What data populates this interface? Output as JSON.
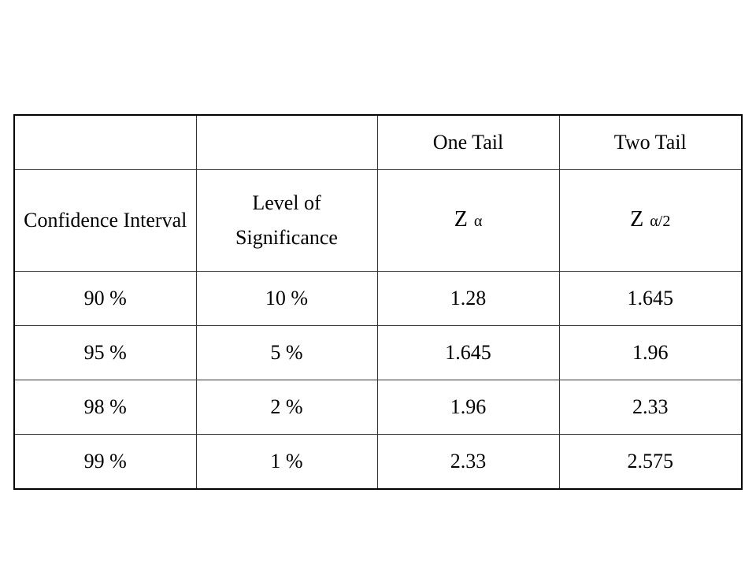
{
  "table": {
    "top_header": [
      "One Tail",
      "Two Tail"
    ],
    "header": [
      {
        "text": "Confidence Interval"
      },
      {
        "text": "Level of Significance"
      },
      {
        "symbol": "Z",
        "subscript": "α"
      },
      {
        "symbol": "Z",
        "subscript": "α/2"
      }
    ],
    "rows": [
      [
        "90 %",
        "10 %",
        "1.28",
        "1.645"
      ],
      [
        "95 %",
        "5 %",
        "1.645",
        "1.96"
      ],
      [
        "98 %",
        "2 %",
        "1.96",
        "2.33"
      ],
      [
        "99 %",
        "1 %",
        "2.33",
        "2.575"
      ]
    ]
  }
}
